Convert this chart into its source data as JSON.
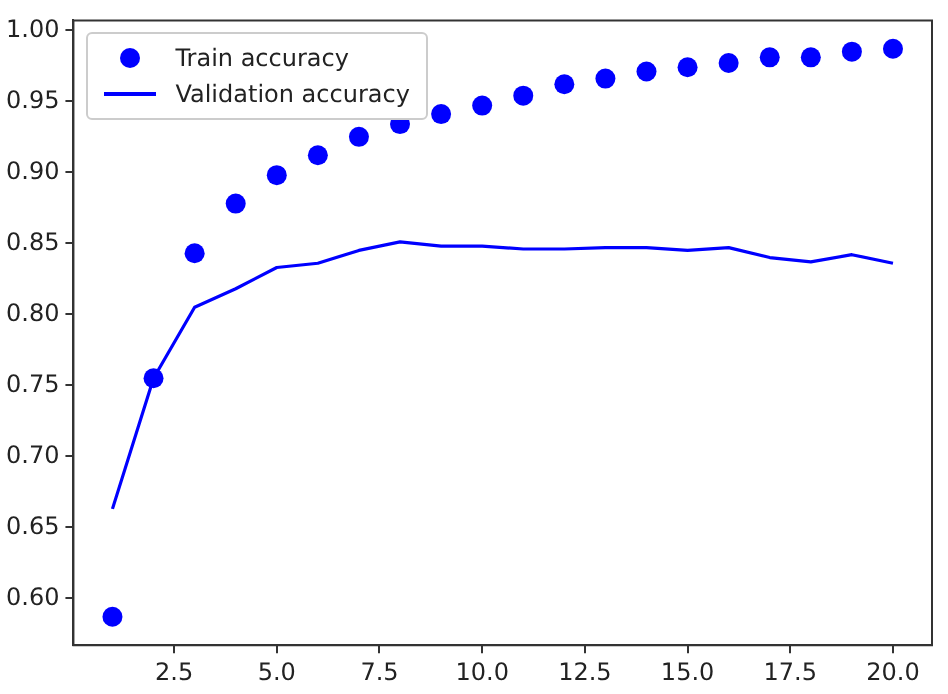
{
  "chart_data": {
    "type": "line",
    "x": [
      1,
      2,
      3,
      4,
      5,
      6,
      7,
      8,
      9,
      10,
      11,
      12,
      13,
      14,
      15,
      16,
      17,
      18,
      19,
      20
    ],
    "series": [
      {
        "name": "Train accuracy",
        "type": "scatter",
        "marker": "circle",
        "color": "#0000ff",
        "values": [
          0.587,
          0.755,
          0.843,
          0.878,
          0.898,
          0.912,
          0.925,
          0.934,
          0.941,
          0.947,
          0.954,
          0.962,
          0.966,
          0.971,
          0.974,
          0.977,
          0.981,
          0.981,
          0.985,
          0.987
        ]
      },
      {
        "name": "Validation accuracy",
        "type": "line",
        "marker": "none",
        "line_style": "solid",
        "color": "#0000ff",
        "values": [
          0.663,
          0.755,
          0.805,
          0.818,
          0.833,
          0.836,
          0.845,
          0.851,
          0.848,
          0.848,
          0.846,
          0.846,
          0.847,
          0.847,
          0.845,
          0.847,
          0.84,
          0.837,
          0.842,
          0.836
        ]
      }
    ],
    "xlim": [
      0.05,
      20.95
    ],
    "xticks": [
      {
        "value": 2.5,
        "label": "2.5"
      },
      {
        "value": 5,
        "label": "5.0"
      },
      {
        "value": 7.5,
        "label": "7.5"
      },
      {
        "value": 10,
        "label": "10.0"
      },
      {
        "value": 12.5,
        "label": "12.5"
      },
      {
        "value": 15,
        "label": "15.0"
      },
      {
        "value": 17.5,
        "label": "17.5"
      },
      {
        "value": 20,
        "label": "20.0"
      }
    ],
    "ylim": [
      0.567,
      1.007
    ],
    "yticks": [
      {
        "value": 0.6,
        "label": "0.60"
      },
      {
        "value": 0.65,
        "label": "0.65"
      },
      {
        "value": 0.7,
        "label": "0.70"
      },
      {
        "value": 0.75,
        "label": "0.75"
      },
      {
        "value": 0.8,
        "label": "0.80"
      },
      {
        "value": 0.85,
        "label": "0.85"
      },
      {
        "value": 0.9,
        "label": "0.90"
      },
      {
        "value": 0.95,
        "label": "0.95"
      },
      {
        "value": 1.0,
        "label": "1.00"
      }
    ],
    "grid": false,
    "legend": "top left"
  }
}
